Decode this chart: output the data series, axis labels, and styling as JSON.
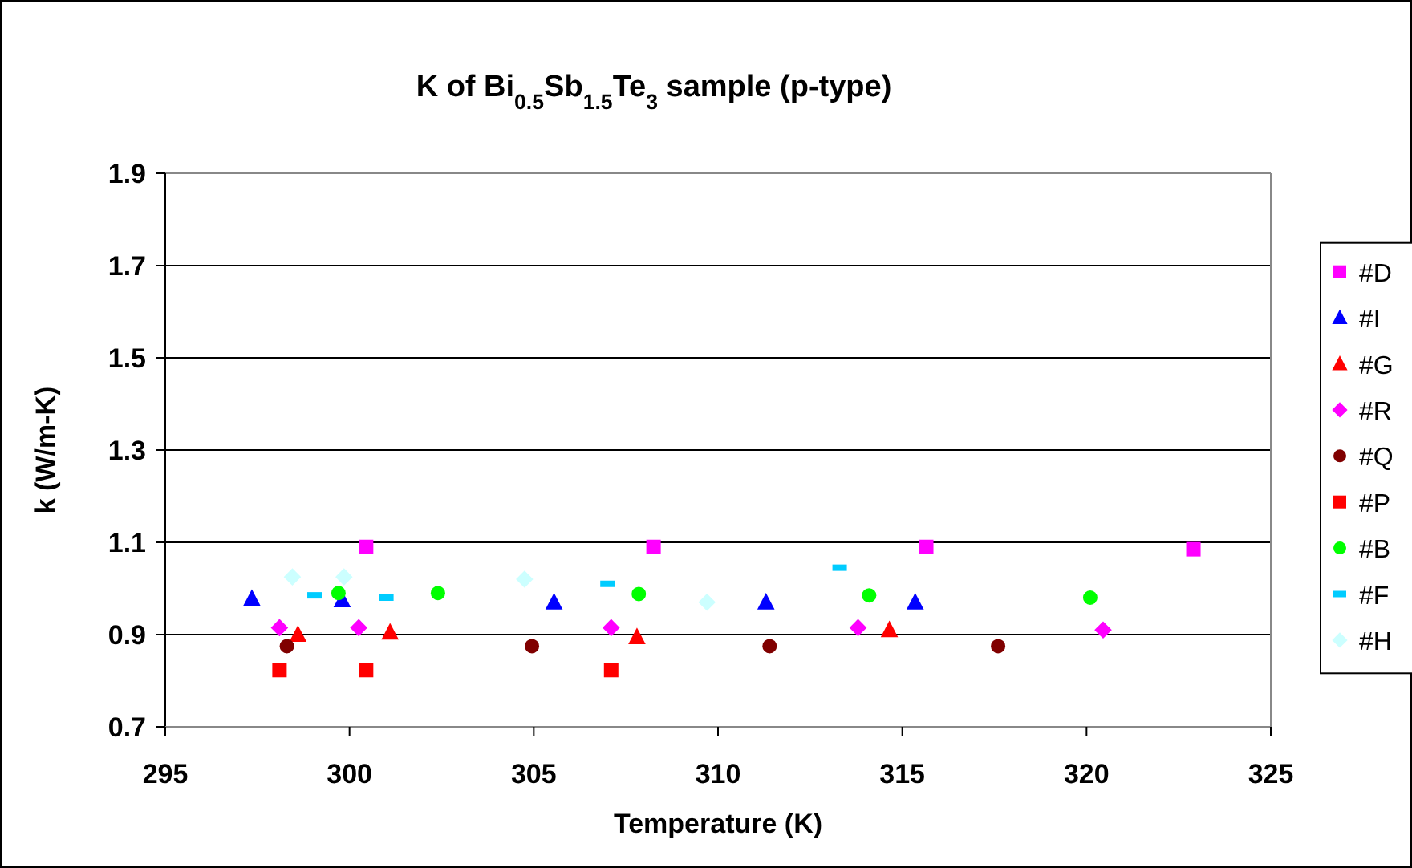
{
  "chart_data": {
    "type": "scatter",
    "title": "K of Bi$_{0.5}$Sb$_{1.5}$Te$_{3}$ sample (p-type)",
    "xlabel": "Temperature (K)",
    "ylabel": "k (W/m-K)",
    "xlim": [
      295,
      325
    ],
    "xticks": [
      295,
      300,
      305,
      310,
      315,
      320,
      325
    ],
    "ylim": [
      0.7,
      1.9
    ],
    "yticks": [
      0.7,
      0.9,
      1.1,
      1.3,
      1.5,
      1.7,
      1.9
    ],
    "grid": "y",
    "legend": "right",
    "series": [
      {
        "name": "#D",
        "color": "#ff00ff",
        "marker": "square",
        "x": [
          300.45,
          308.25,
          315.65,
          322.9
        ],
        "values": [
          1.09,
          1.09,
          1.09,
          1.085
        ]
      },
      {
        "name": "#I",
        "color": "#0000ff",
        "marker": "triangle",
        "x": [
          297.35,
          299.8,
          305.55,
          311.3,
          315.35
        ],
        "values": [
          0.978,
          0.975,
          0.97,
          0.97,
          0.97
        ]
      },
      {
        "name": "#G",
        "color": "#ff0000",
        "marker": "triangle",
        "x": [
          298.6,
          301.1,
          307.8,
          314.65
        ],
        "values": [
          0.9,
          0.905,
          0.895,
          0.91
        ]
      },
      {
        "name": "#R",
        "color": "#ff00ff",
        "marker": "diamond",
        "x": [
          298.1,
          300.25,
          307.1,
          313.8,
          320.45
        ],
        "values": [
          0.915,
          0.915,
          0.915,
          0.915,
          0.91
        ]
      },
      {
        "name": "#Q",
        "color": "#800000",
        "marker": "circle",
        "x": [
          298.3,
          304.95,
          311.4,
          317.6
        ],
        "values": [
          0.875,
          0.875,
          0.875,
          0.875
        ]
      },
      {
        "name": "#P",
        "color": "#ff0000",
        "marker": "square",
        "x": [
          298.1,
          300.45,
          307.1
        ],
        "values": [
          0.823,
          0.823,
          0.823
        ]
      },
      {
        "name": "#B",
        "color": "#00ff00",
        "marker": "circle",
        "x": [
          299.7,
          302.4,
          307.85,
          314.1,
          320.1
        ],
        "values": [
          0.99,
          0.99,
          0.988,
          0.985,
          0.98
        ]
      },
      {
        "name": "#F",
        "color": "#00ccff",
        "x": [
          299.05,
          301.0,
          307.0,
          313.3
        ],
        "values": [
          0.985,
          0.98,
          1.01,
          1.045
        ]
      },
      {
        "name": "#H",
        "color": "#ccffff",
        "marker": "diamond",
        "x": [
          298.45,
          299.85,
          304.75,
          309.7
        ],
        "values": [
          1.025,
          1.025,
          1.02,
          0.97
        ]
      }
    ]
  }
}
